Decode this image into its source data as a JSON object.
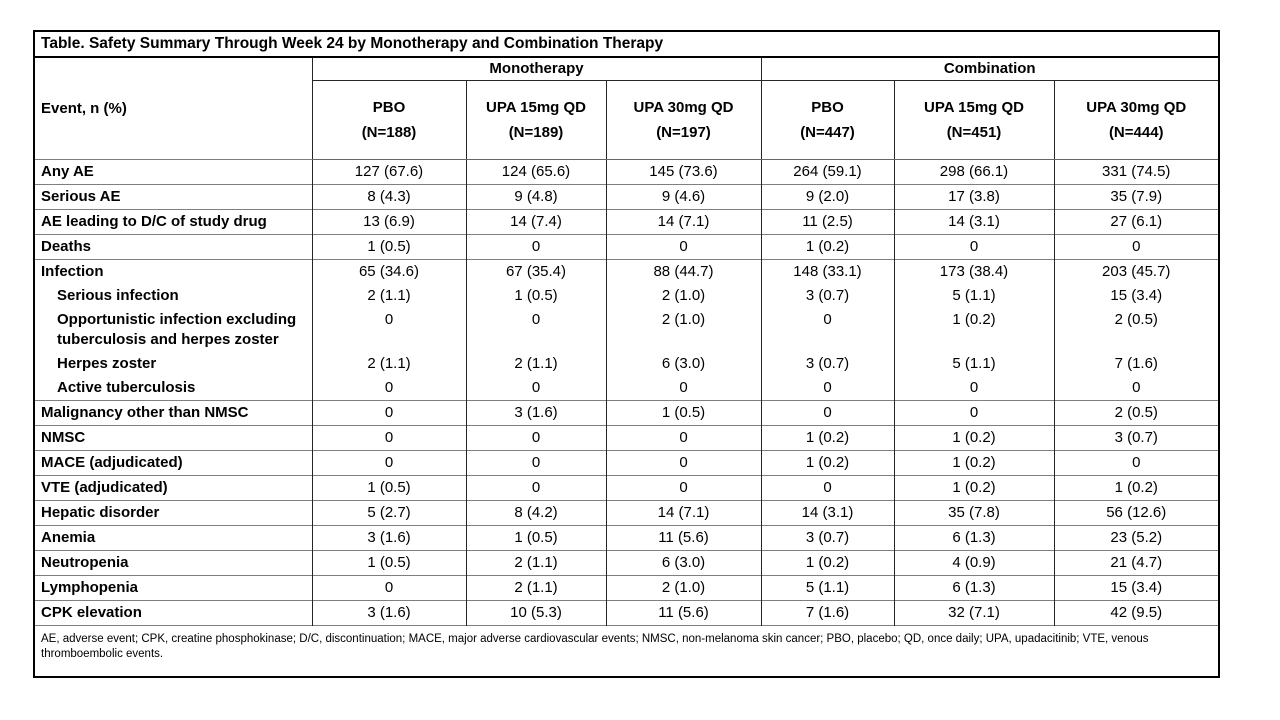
{
  "table": {
    "title": "Table. Safety Summary Through Week 24 by Monotherapy and Combination Therapy",
    "row_header": "Event, n (%)",
    "groups": [
      {
        "label": "Monotherapy",
        "columns": [
          {
            "name": "PBO",
            "n": "(N=188)"
          },
          {
            "name": "UPA 15mg QD",
            "n": "(N=189)"
          },
          {
            "name": "UPA 30mg QD",
            "n": "(N=197)"
          }
        ]
      },
      {
        "label": "Combination",
        "columns": [
          {
            "name": "PBO",
            "n": "(N=447)"
          },
          {
            "name": "UPA 15mg QD",
            "n": "(N=451)"
          },
          {
            "name": "UPA 30mg QD",
            "n": "(N=444)"
          }
        ]
      }
    ],
    "rows": [
      {
        "label": "Any AE",
        "values": [
          "127 (67.6)",
          "124 (65.6)",
          "145 (73.6)",
          "264 (59.1)",
          "298 (66.1)",
          "331 (74.5)"
        ]
      },
      {
        "label": "Serious AE",
        "values": [
          "8 (4.3)",
          "9 (4.8)",
          "9 (4.6)",
          "9 (2.0)",
          "17 (3.8)",
          "35 (7.9)"
        ]
      },
      {
        "label": "AE leading to D/C of study drug",
        "values": [
          "13 (6.9)",
          "14 (7.4)",
          "14 (7.1)",
          "11 (2.5)",
          "14 (3.1)",
          "27 (6.1)"
        ]
      },
      {
        "label": "Deaths",
        "values": [
          "1 (0.5)",
          "0",
          "0",
          "1 (0.2)",
          "0",
          "0"
        ]
      },
      {
        "label": "Infection",
        "values": [
          "65 (34.6)",
          "67 (35.4)",
          "88 (44.7)",
          "148 (33.1)",
          "173 (38.4)",
          "203 (45.7)"
        ]
      },
      {
        "label": "Serious infection",
        "indent": 1,
        "rule": false,
        "values": [
          "2 (1.1)",
          "1 (0.5)",
          "2 (1.0)",
          "3 (0.7)",
          "5 (1.1)",
          "15 (3.4)"
        ]
      },
      {
        "label": "Opportunistic infection excluding",
        "label2": "tuberculosis and herpes zoster",
        "indent": 1,
        "rule": false,
        "values": [
          "0",
          "0",
          "2 (1.0)",
          "0",
          "1 (0.2)",
          "2 (0.5)"
        ]
      },
      {
        "label": "Herpes zoster",
        "indent": 1,
        "rule": false,
        "values": [
          "2 (1.1)",
          "2 (1.1)",
          "6 (3.0)",
          "3 (0.7)",
          "5 (1.1)",
          "7 (1.6)"
        ]
      },
      {
        "label": "Active tuberculosis",
        "indent": 1,
        "rule": false,
        "values": [
          "0",
          "0",
          "0",
          "0",
          "0",
          "0"
        ]
      },
      {
        "label": "Malignancy other than NMSC",
        "values": [
          "0",
          "3 (1.6)",
          "1 (0.5)",
          "0",
          "0",
          "2 (0.5)"
        ]
      },
      {
        "label": "NMSC",
        "values": [
          "0",
          "0",
          "0",
          "1 (0.2)",
          "1 (0.2)",
          "3 (0.7)"
        ]
      },
      {
        "label": "MACE (adjudicated)",
        "values": [
          "0",
          "0",
          "0",
          "1 (0.2)",
          "1 (0.2)",
          "0"
        ]
      },
      {
        "label": "VTE (adjudicated)",
        "values": [
          "1 (0.5)",
          "0",
          "0",
          "0",
          "1 (0.2)",
          "1 (0.2)"
        ]
      },
      {
        "label": "Hepatic disorder",
        "values": [
          "5 (2.7)",
          "8 (4.2)",
          "14 (7.1)",
          "14 (3.1)",
          "35 (7.8)",
          "56 (12.6)"
        ]
      },
      {
        "label": "Anemia",
        "values": [
          "3 (1.6)",
          "1 (0.5)",
          "11 (5.6)",
          "3 (0.7)",
          "6 (1.3)",
          "23 (5.2)"
        ]
      },
      {
        "label": "Neutropenia",
        "values": [
          "1 (0.5)",
          "2 (1.1)",
          "6 (3.0)",
          "1 (0.2)",
          "4 (0.9)",
          "21 (4.7)"
        ]
      },
      {
        "label": "Lymphopenia",
        "values": [
          "0",
          "2 (1.1)",
          "2 (1.0)",
          "5 (1.1)",
          "6 (1.3)",
          "15 (3.4)"
        ]
      },
      {
        "label": "CPK elevation",
        "values": [
          "3 (1.6)",
          "10 (5.3)",
          "11 (5.6)",
          "7 (1.6)",
          "32 (7.1)",
          "42 (9.5)"
        ]
      }
    ],
    "footnote": "AE, adverse event; CPK, creatine phosphokinase; D/C, discontinuation; MACE, major adverse cardiovascular events; NMSC, non-melanoma skin cancer; PBO, placebo; QD, once daily; UPA, upadacitinib; VTE, venous thromboembolic events."
  },
  "chart_data": {
    "type": "table",
    "title": "Table. Safety Summary Through Week 24 by Monotherapy and Combination Therapy",
    "column_groups": [
      "Monotherapy",
      "Monotherapy",
      "Monotherapy",
      "Combination",
      "Combination",
      "Combination"
    ],
    "columns": [
      "PBO (N=188)",
      "UPA 15mg QD (N=189)",
      "UPA 30mg QD (N=197)",
      "PBO (N=447)",
      "UPA 15mg QD (N=451)",
      "UPA 30mg QD (N=444)"
    ],
    "row_header": "Event, n (%)",
    "rows": [
      [
        "Any AE",
        "127 (67.6)",
        "124 (65.6)",
        "145 (73.6)",
        "264 (59.1)",
        "298 (66.1)",
        "331 (74.5)"
      ],
      [
        "Serious AE",
        "8 (4.3)",
        "9 (4.8)",
        "9 (4.6)",
        "9 (2.0)",
        "17 (3.8)",
        "35 (7.9)"
      ],
      [
        "AE leading to D/C of study drug",
        "13 (6.9)",
        "14 (7.4)",
        "14 (7.1)",
        "11 (2.5)",
        "14 (3.1)",
        "27 (6.1)"
      ],
      [
        "Deaths",
        "1 (0.5)",
        "0",
        "0",
        "1 (0.2)",
        "0",
        "0"
      ],
      [
        "Infection",
        "65 (34.6)",
        "67 (35.4)",
        "88 (44.7)",
        "148 (33.1)",
        "173 (38.4)",
        "203 (45.7)"
      ],
      [
        "Serious infection",
        "2 (1.1)",
        "1 (0.5)",
        "2 (1.0)",
        "3 (0.7)",
        "5 (1.1)",
        "15 (3.4)"
      ],
      [
        "Opportunistic infection excluding tuberculosis and herpes zoster",
        "0",
        "0",
        "2 (1.0)",
        "0",
        "1 (0.2)",
        "2 (0.5)"
      ],
      [
        "Herpes zoster",
        "2 (1.1)",
        "2 (1.1)",
        "6 (3.0)",
        "3 (0.7)",
        "5 (1.1)",
        "7 (1.6)"
      ],
      [
        "Active tuberculosis",
        "0",
        "0",
        "0",
        "0",
        "0",
        "0"
      ],
      [
        "Malignancy other than NMSC",
        "0",
        "3 (1.6)",
        "1 (0.5)",
        "0",
        "0",
        "2 (0.5)"
      ],
      [
        "NMSC",
        "0",
        "0",
        "0",
        "1 (0.2)",
        "1 (0.2)",
        "3 (0.7)"
      ],
      [
        "MACE (adjudicated)",
        "0",
        "0",
        "0",
        "1 (0.2)",
        "1 (0.2)",
        "0"
      ],
      [
        "VTE (adjudicated)",
        "1 (0.5)",
        "0",
        "0",
        "0",
        "1 (0.2)",
        "1 (0.2)"
      ],
      [
        "Hepatic disorder",
        "5 (2.7)",
        "8 (4.2)",
        "14 (7.1)",
        "14 (3.1)",
        "35 (7.8)",
        "56 (12.6)"
      ],
      [
        "Anemia",
        "3 (1.6)",
        "1 (0.5)",
        "11 (5.6)",
        "3 (0.7)",
        "6 (1.3)",
        "23 (5.2)"
      ],
      [
        "Neutropenia",
        "1 (0.5)",
        "2 (1.1)",
        "6 (3.0)",
        "1 (0.2)",
        "4 (0.9)",
        "21 (4.7)"
      ],
      [
        "Lymphopenia",
        "0",
        "2 (1.1)",
        "2 (1.0)",
        "5 (1.1)",
        "6 (1.3)",
        "15 (3.4)"
      ],
      [
        "CPK elevation",
        "3 (1.6)",
        "10 (5.3)",
        "11 (5.6)",
        "7 (1.6)",
        "32 (7.1)",
        "42 (9.5)"
      ]
    ],
    "footnote": "AE, adverse event; CPK, creatine phosphokinase; D/C, discontinuation; MACE, major adverse cardiovascular events; NMSC, non-melanoma skin cancer; PBO, placebo; QD, once daily; UPA, upadacitinib; VTE, venous thromboembolic events."
  }
}
